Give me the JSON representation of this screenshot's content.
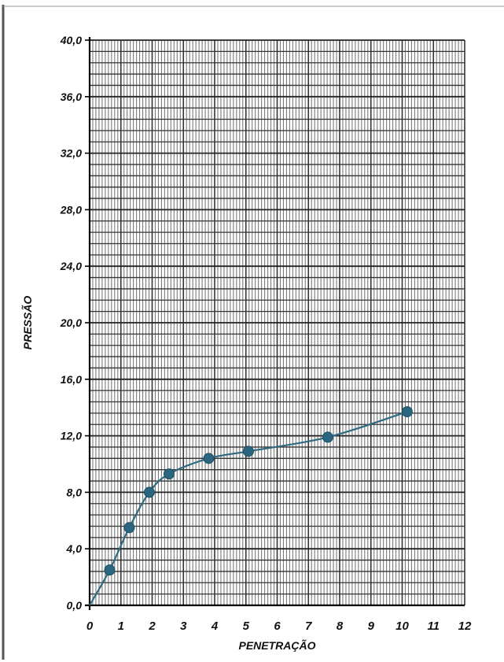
{
  "chart_data": {
    "type": "line",
    "xlabel": "PENETRAÇÃO",
    "ylabel": "PRESSÃO",
    "xlim": [
      0,
      12
    ],
    "ylim": [
      0,
      40
    ],
    "x_ticks": [
      "0",
      "1",
      "2",
      "3",
      "4",
      "5",
      "6",
      "7",
      "8",
      "9",
      "10",
      "11",
      "12"
    ],
    "y_ticks": [
      "0,0",
      "4,0",
      "8,0",
      "12,0",
      "16,0",
      "20,0",
      "24,0",
      "28,0",
      "32,0",
      "36,0",
      "40,0"
    ],
    "grid": true,
    "series": [
      {
        "points": [
          {
            "x": 0.64,
            "y": 2.5
          },
          {
            "x": 1.27,
            "y": 5.5
          },
          {
            "x": 1.91,
            "y": 8.0
          },
          {
            "x": 2.54,
            "y": 9.3
          },
          {
            "x": 3.81,
            "y": 10.4
          },
          {
            "x": 5.08,
            "y": 10.9
          },
          {
            "x": 7.62,
            "y": 11.9
          },
          {
            "x": 10.16,
            "y": 13.7
          }
        ],
        "curve_start": {
          "x": 0,
          "y": 0
        },
        "color": "#2e6b80",
        "marker_color": "#2a6680"
      }
    ]
  }
}
